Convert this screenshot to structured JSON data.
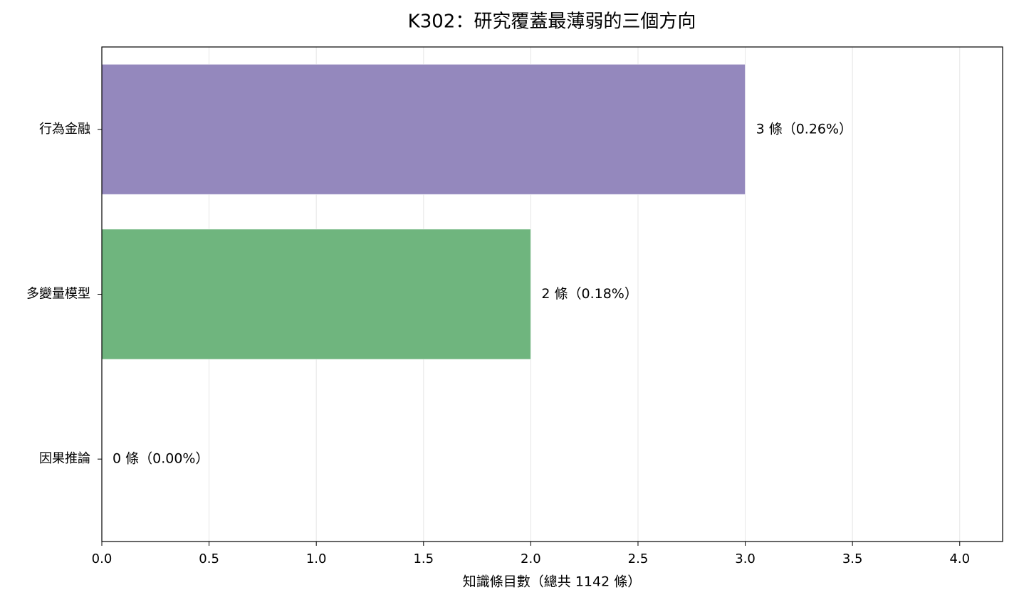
{
  "chart_data": {
    "type": "barh",
    "title": "K302：研究覆蓋最薄弱的三個方向",
    "x_label": "知識條目數（總共 1142 條）",
    "categories": [
      "行為金融",
      "多變量模型",
      "因果推論"
    ],
    "values": [
      3,
      2,
      0
    ],
    "value_labels": [
      "3 條（0.26%）",
      "2 條（0.18%）",
      "0 條（0.00%）"
    ],
    "colors": [
      "#9488bd",
      "#6fb57e"
    ],
    "xlim": [
      0,
      4.2
    ],
    "xticks": [
      {
        "value": 0,
        "label": "0.0"
      },
      0.5,
      {
        "value": 1,
        "label": "1.0"
      },
      1.5,
      {
        "value": 2,
        "label": "2.0"
      },
      2.5,
      {
        "value": 3,
        "label": "3.0"
      },
      3.5,
      {
        "value": 4,
        "label": "4.0"
      }
    ],
    "grid": true
  }
}
